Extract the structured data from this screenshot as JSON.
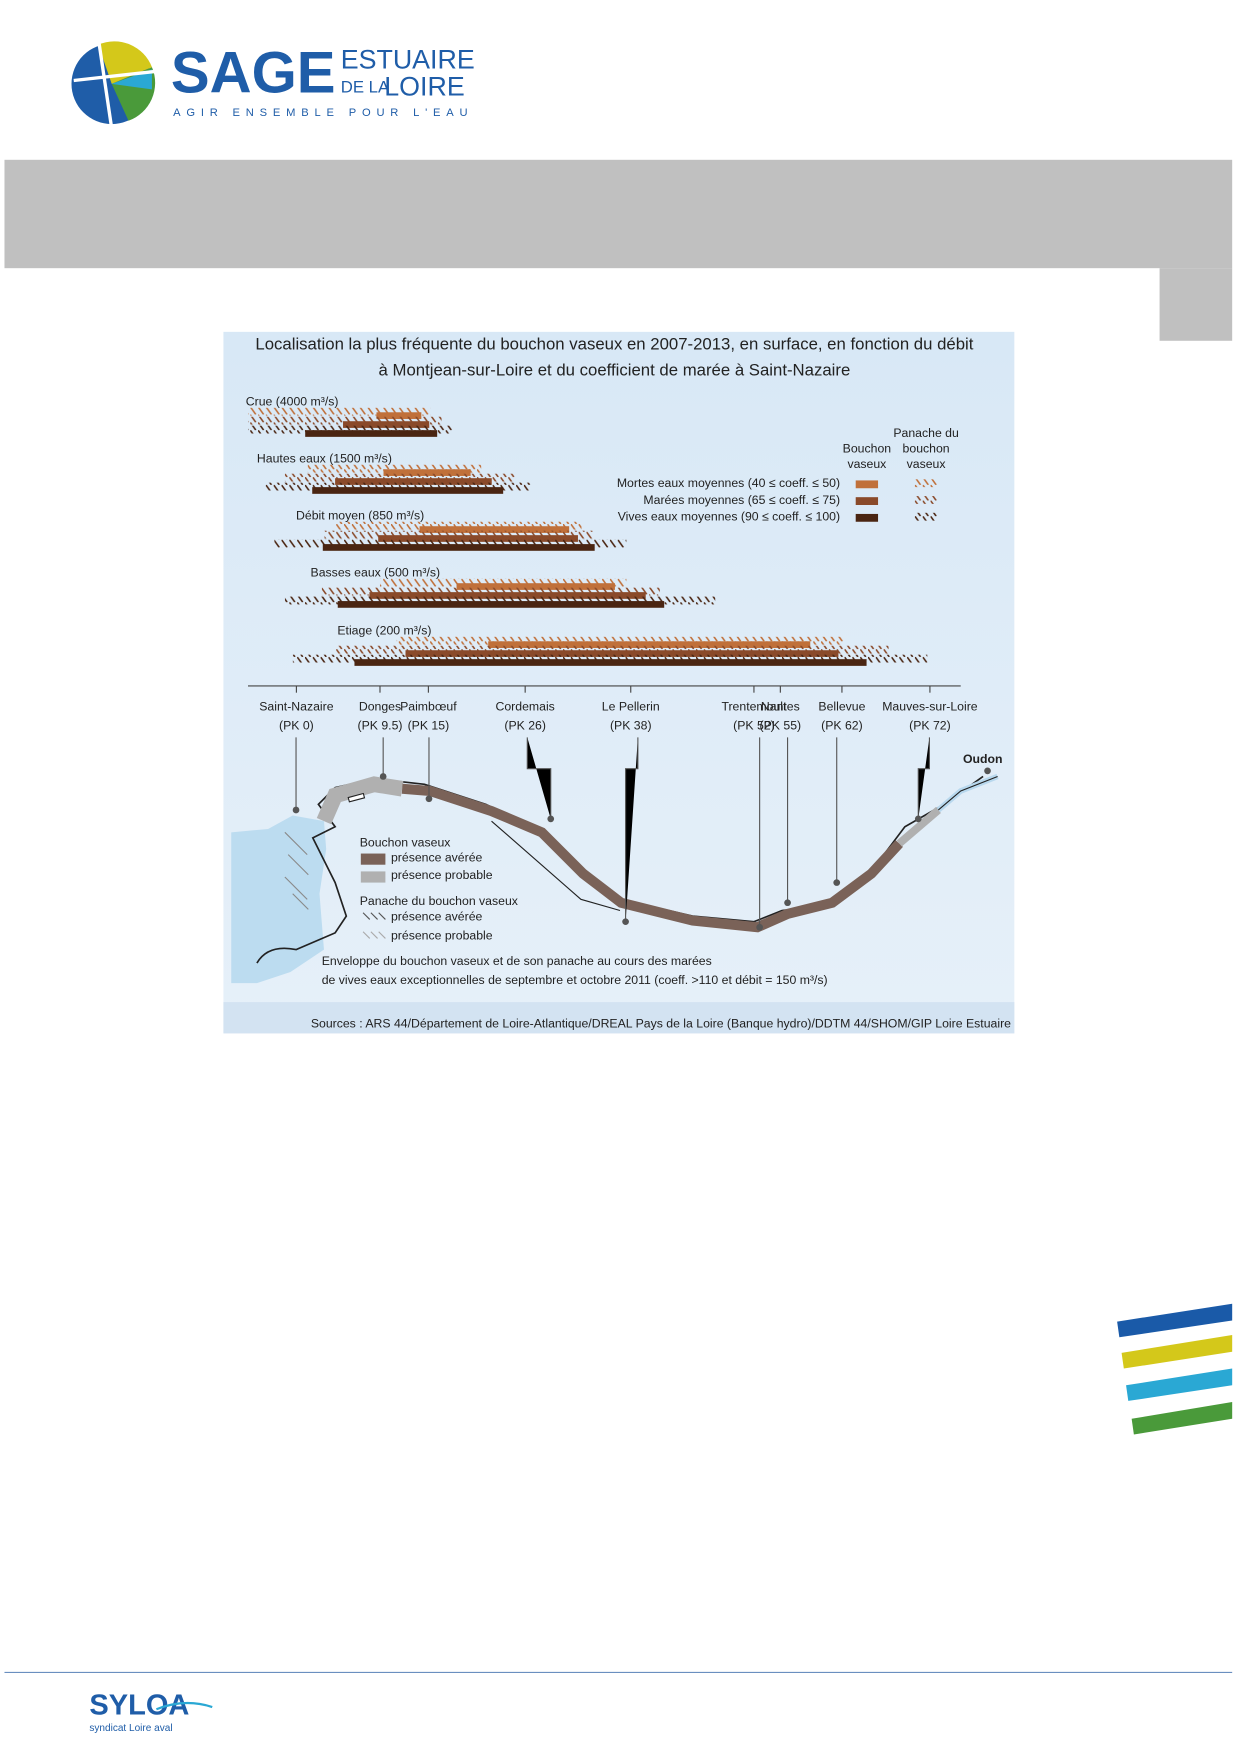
{
  "header": {
    "logo": {
      "name": "SAGE",
      "sub1": "ESTUAIRE",
      "sub2a": "DE LA",
      "sub2b": "LOIRE",
      "tagline": "AGIR ENSEMBLE POUR L'EAU"
    }
  },
  "figure": {
    "title": [
      "Localisation la plus fréquente du bouchon vaseux en 2007-2013, en surface, en fonction du débit",
      "à Montjean-sur-Loire et du coefficient de marée à Saint-Nazaire"
    ],
    "xlim": [
      -5.5,
      75.5
    ],
    "ticks": [
      {
        "place": "Saint-Nazaire",
        "value": 0,
        "label": "(PK 0)"
      },
      {
        "place": "Donges",
        "value": 9.5,
        "label": "(PK 9.5)"
      },
      {
        "place": "Paimbœuf",
        "value": 15,
        "label": "(PK 15)"
      },
      {
        "place": "Cordemais",
        "value": 26,
        "label": "(PK 26)"
      },
      {
        "place": "Le Pellerin",
        "value": 38,
        "label": "(PK 38)"
      },
      {
        "place": "Trentemoult",
        "value": 52,
        "label": "(PK 52)"
      },
      {
        "place": "Nantes",
        "value": 55,
        "label": "(PK 55)"
      },
      {
        "place": "Bellevue",
        "value": 62,
        "label": "(PK 62)"
      },
      {
        "place": "Mauves-sur-Loire",
        "value": 72,
        "label": "(PK 72)"
      }
    ],
    "series": [
      {
        "name": "Mortes eaux moyennes (40 ≤ coeff. ≤ 50)",
        "color": "#c0703a"
      },
      {
        "name": "Marées moyennes (65 ≤ coeff. ≤ 75)",
        "color": "#8a4a2a"
      },
      {
        "name": "Vives eaux moyennes (90 ≤ coeff. ≤ 100)",
        "color": "#4a2512"
      }
    ],
    "legend_headers": {
      "bouchon": [
        "Bouchon",
        "vaseux"
      ],
      "panache": [
        "Panache du",
        "bouchon",
        "vaseux"
      ]
    },
    "regimes": [
      {
        "name": "Crue (4000 m³/s)",
        "bars": [
          {
            "bouchon": [
              9.1,
              14.2
            ],
            "panache": [
              -5.5,
              15.2
            ]
          },
          {
            "bouchon": [
              5.3,
              15.1
            ],
            "panache": [
              -5.5,
              16.5
            ]
          },
          {
            "bouchon": [
              1,
              16
            ],
            "panache": [
              -5.5,
              17.8
            ]
          }
        ]
      },
      {
        "name": "Hautes eaux (1500 m³/s)",
        "bars": [
          {
            "bouchon": [
              9.9,
              19.8
            ],
            "panache": [
              1.3,
              21
            ]
          },
          {
            "bouchon": [
              4.4,
              22.2
            ],
            "panache": [
              -1.3,
              24.8
            ]
          },
          {
            "bouchon": [
              1.8,
              23.5
            ],
            "panache": [
              -3.6,
              26.7
            ]
          }
        ]
      },
      {
        "name": "Débit moyen (850 m³/s)",
        "bars": [
          {
            "bouchon": [
              14,
              31
            ],
            "panache": [
              4.4,
              32.4
            ]
          },
          {
            "bouchon": [
              9.3,
              32
            ],
            "panache": [
              3.2,
              33.7
            ]
          },
          {
            "bouchon": [
              3,
              33.9
            ],
            "panache": [
              -2.5,
              37.5
            ]
          }
        ]
      },
      {
        "name": "Basses eaux (500 m³/s)",
        "bars": [
          {
            "bouchon": [
              18.2,
              36.2
            ],
            "panache": [
              9.5,
              37.5
            ]
          },
          {
            "bouchon": [
              8.3,
              39.7
            ],
            "panache": [
              2.9,
              41.3
            ]
          },
          {
            "bouchon": [
              4.7,
              41.8
            ],
            "panache": [
              -1.3,
              47.6
            ]
          }
        ]
      },
      {
        "name": "Etiage (200 m³/s)",
        "bars": [
          {
            "bouchon": [
              21.8,
              58.4
            ],
            "panache": [
              11.4,
              62.2
            ]
          },
          {
            "bouchon": [
              12.4,
              61.6
            ],
            "panache": [
              4.4,
              67.3
            ]
          },
          {
            "bouchon": [
              6.6,
              64.8
            ],
            "panache": [
              -0.4,
              71.7
            ]
          }
        ]
      }
    ],
    "map": {
      "oudon": "Oudon",
      "legend": {
        "bouchon_title": "Bouchon vaseux",
        "bouchon_sure": "présence avérée",
        "bouchon_probable": "présence probable",
        "panache_title": "Panache du bouchon vaseux",
        "panache_sure": "présence avérée",
        "panache_probable": "présence probable"
      },
      "envelope": [
        "Enveloppe du bouchon vaseux et de son panache au cours des marées",
        "de vives eaux exceptionnelles de septembre et octobre 2011 (coeff. >110 et débit = 150 m³/s)"
      ]
    },
    "source": "Sources : ARS 44/Département de Loire-Atlantique/DREAL Pays de la Loire (Banque hydro)/DDTM 44/SHOM/GIP Loire Estuaire"
  },
  "footer": {
    "logo": "SYLOA",
    "tagline": "syndicat Loire aval"
  }
}
